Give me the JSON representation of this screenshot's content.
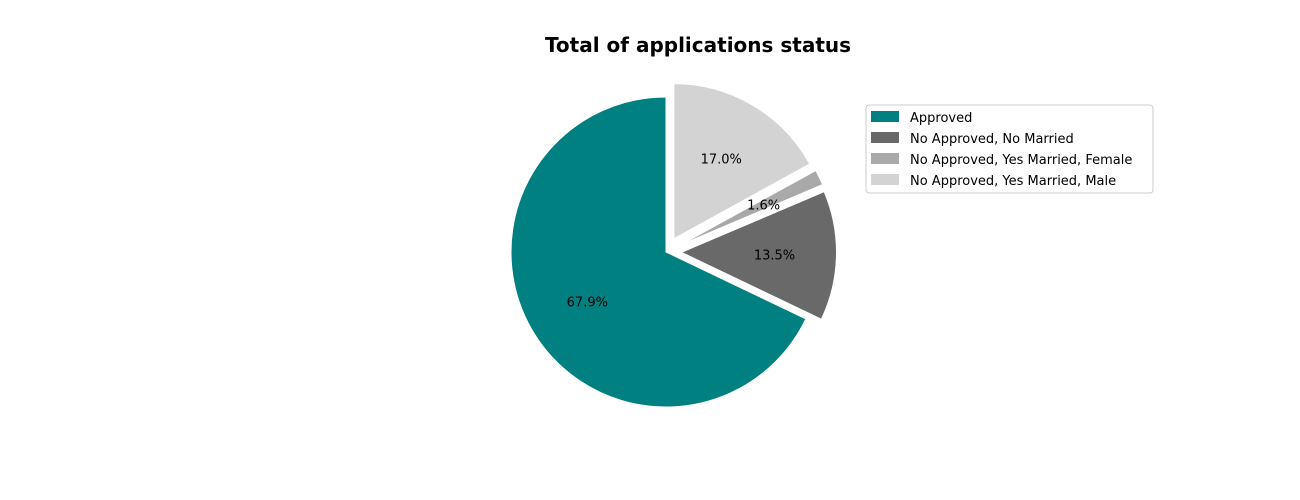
{
  "chart_data": {
    "type": "pie",
    "title": "Total of applications status",
    "slices": [
      {
        "label": "Approved",
        "value": 67.9,
        "pct_label": "67.9%",
        "color": "#008080",
        "explode": 0.0
      },
      {
        "label": "No Approved, No Married",
        "value": 13.5,
        "pct_label": "13.5%",
        "color": "#696969",
        "explode": 0.1
      },
      {
        "label": "No Approved, Yes Married, Female",
        "value": 1.6,
        "pct_label": "1.6%",
        "color": "#a9a9a9",
        "explode": 0.1
      },
      {
        "label": "No Approved, Yes Married, Male",
        "value": 17.0,
        "pct_label": "17.0%",
        "color": "#d3d3d3",
        "explode": 0.1
      }
    ],
    "start_angle_deg": 90,
    "direction": "counterclockwise",
    "legend_position": "right"
  }
}
